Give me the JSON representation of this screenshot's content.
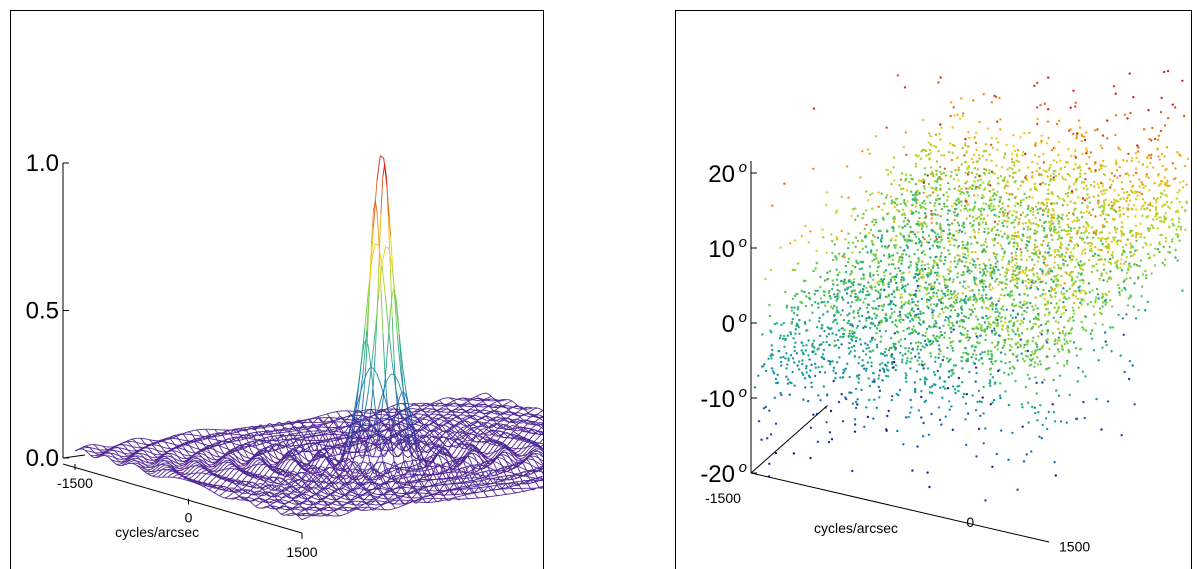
{
  "chart_data": [
    {
      "type": "surface",
      "xlabel": "cycles/arcsec",
      "x_ticks": [
        "-1500",
        "0",
        "1500"
      ],
      "z_ticks": [
        "0.0",
        "0.5",
        "1.0"
      ],
      "zlim": [
        0,
        1.0
      ],
      "peak_value": 1.0,
      "colormap": [
        "#5a1d8f",
        "#2a47a8",
        "#1d8fa8",
        "#2fb37a",
        "#9bd13c",
        "#f2d21d",
        "#f07a1c",
        "#d8231d"
      ]
    },
    {
      "type": "scatter",
      "xlabel": "cycles/arcsec",
      "x_ticks": [
        "-1500",
        "0",
        "1500"
      ],
      "z_ticks": [
        "20",
        "10",
        "0",
        "-10",
        "-20"
      ],
      "z_unit_symbol": "o",
      "zlim": [
        -20,
        20
      ],
      "colormap": [
        "#2a1a8a",
        "#1f4db0",
        "#138fb0",
        "#22b07a",
        "#7fd23a",
        "#e8d41c",
        "#f07a1c",
        "#d8231d"
      ]
    }
  ]
}
